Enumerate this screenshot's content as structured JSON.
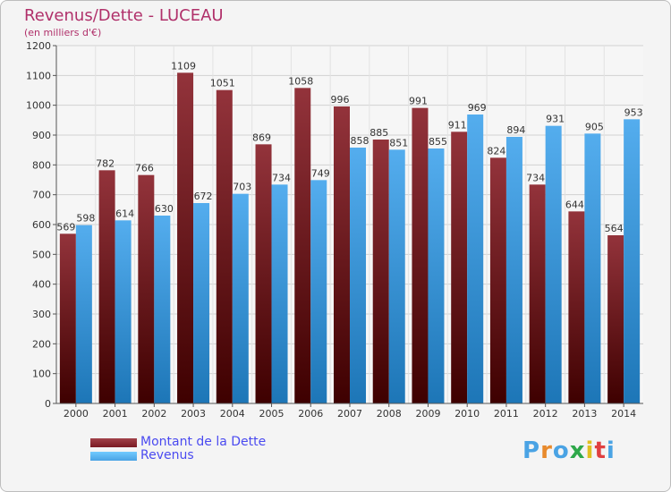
{
  "title": "Revenus/Dette - LUCEAU",
  "subtitle": "(en milliers d'€)",
  "colors": {
    "title": "#b0306a",
    "dette": "#7a1a22",
    "revenus": "#4aa3e4",
    "legend_text": "#4a4af0"
  },
  "chart_data": {
    "type": "bar",
    "categories": [
      "2000",
      "2001",
      "2002",
      "2003",
      "2004",
      "2005",
      "2006",
      "2007",
      "2008",
      "2009",
      "2010",
      "2011",
      "2012",
      "2013",
      "2014"
    ],
    "series": [
      {
        "name": "Montant de la Dette",
        "values": [
          569,
          782,
          766,
          1109,
          1051,
          869,
          1058,
          996,
          885,
          991,
          911,
          824,
          734,
          644,
          564
        ]
      },
      {
        "name": "Revenus",
        "values": [
          598,
          614,
          630,
          672,
          703,
          734,
          749,
          858,
          851,
          855,
          969,
          894,
          931,
          905,
          953
        ]
      }
    ],
    "ylim": [
      0,
      1200
    ],
    "yticks": [
      0,
      100,
      200,
      300,
      400,
      500,
      600,
      700,
      800,
      900,
      1000,
      1100,
      1200
    ],
    "grid": true
  },
  "legend": {
    "items": [
      {
        "label": "Montant de la Dette",
        "color": "#7a1a22"
      },
      {
        "label": "Revenus",
        "color": "#4aa3e4"
      }
    ]
  },
  "brand": {
    "text": "Proxiti"
  }
}
